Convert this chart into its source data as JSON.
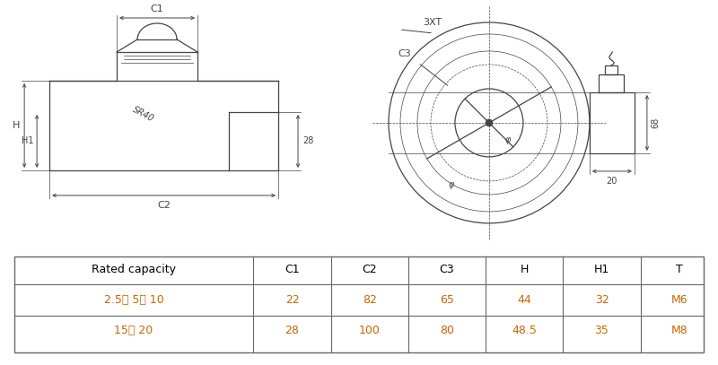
{
  "bg_color": "#ffffff",
  "line_color": "#444444",
  "table_data_color": "#cc6600",
  "table_border_color": "#666666",
  "table": {
    "headers": [
      "Rated capacity",
      "C1",
      "C2",
      "C3",
      "H",
      "H1",
      "T"
    ],
    "rows": [
      [
        "2.5、 5、 10",
        "22",
        "82",
        "65",
        "44",
        "32",
        "M6"
      ],
      [
        "15、 20",
        "28",
        "100",
        "80",
        "48.5",
        "35",
        "M8"
      ]
    ]
  }
}
